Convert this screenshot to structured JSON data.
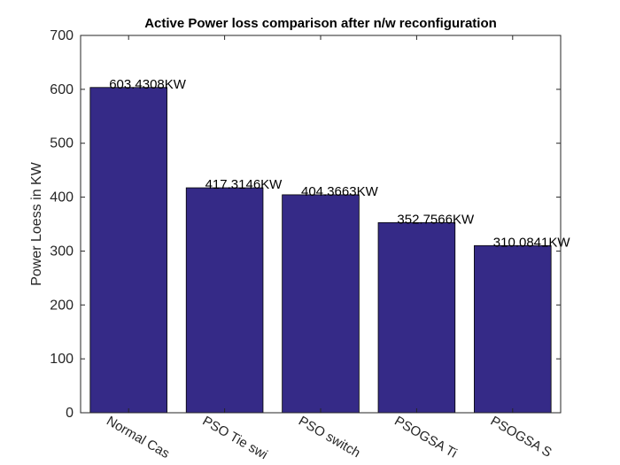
{
  "chart_data": {
    "type": "bar",
    "title": "Active Power loss comparison after n/w reconfiguration",
    "y_label": "Power Loess in KW",
    "categories": [
      "Normal Cas",
      "PSO Tie swi",
      "PSO switch",
      "PSOGSA Ti",
      "PSOGSA S"
    ],
    "values": [
      603.4308,
      417.3146,
      404.3663,
      352.7566,
      310.0841
    ],
    "value_labels": [
      "603.4308KW",
      "417.3146KW",
      "404.3663KW",
      "352.7566KW",
      "310.0841KW"
    ],
    "color": "#352a87",
    "ylim": [
      0,
      700
    ],
    "yticks": [
      0,
      100,
      200,
      300,
      400,
      500,
      600,
      700
    ]
  }
}
